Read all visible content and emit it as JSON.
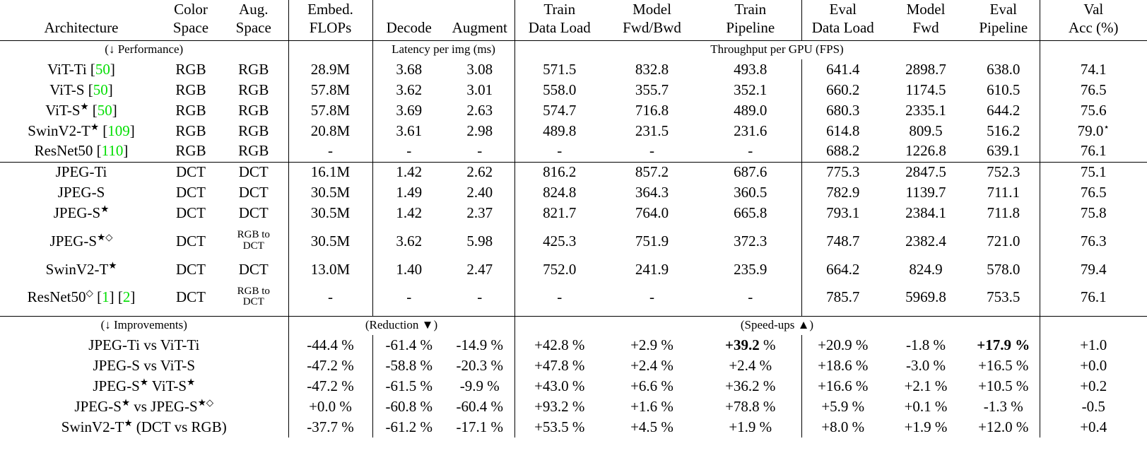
{
  "colors": {
    "background": "#FFFFFF",
    "text": "#000000",
    "citation_green": "#00DE00"
  },
  "table": {
    "columns": [
      {
        "line1": "",
        "line2": "Architecture"
      },
      {
        "line1": "Color",
        "line2": "Space"
      },
      {
        "line1": "Aug.",
        "line2": "Space"
      },
      {
        "line1": "Embed.",
        "line2": "FLOPs"
      },
      {
        "line1": "",
        "line2": "Decode"
      },
      {
        "line1": "",
        "line2": "Augment"
      },
      {
        "line1": "Train",
        "line2": "Data Load"
      },
      {
        "line1": "Model",
        "line2": "Fwd/Bwd"
      },
      {
        "line1": "Train",
        "line2": "Pipeline"
      },
      {
        "line1": "Eval",
        "line2": "Data Load"
      },
      {
        "line1": "Model",
        "line2": "Fwd"
      },
      {
        "line1": "Eval",
        "line2": "Pipeline"
      },
      {
        "line1": "Val",
        "line2": "Acc (%)"
      }
    ],
    "section_labels": {
      "performance": "(↓ Performance)",
      "latency": "Latency per img (ms)",
      "throughput": "Throughput per GPU (FPS)",
      "improvements": "(↓ Improvements)",
      "reduction": "(Reduction ▼)",
      "speedups": "(Speed-ups ▲)"
    },
    "performance_rows": [
      [
        "ViT-Ti [50]",
        "RGB",
        "RGB",
        "28.9M",
        "3.68",
        "3.08",
        "571.5",
        "832.8",
        "493.8",
        "641.4",
        "2898.7",
        "638.0",
        "74.1"
      ],
      [
        "ViT-S [50]",
        "RGB",
        "RGB",
        "57.8M",
        "3.62",
        "3.01",
        "558.0",
        "355.7",
        "352.1",
        "660.2",
        "1174.5",
        "610.5",
        "76.5"
      ],
      [
        "ViT-S★ [50]",
        "RGB",
        "RGB",
        "57.8M",
        "3.69",
        "2.63",
        "574.7",
        "716.8",
        "489.0",
        "680.3",
        "2335.1",
        "644.2",
        "75.6"
      ],
      [
        "SwinV2-T★ [109]",
        "RGB",
        "RGB",
        "20.8M",
        "3.61",
        "2.98",
        "489.8",
        "231.5",
        "231.6",
        "614.8",
        "809.5",
        "516.2",
        "79.0⋆"
      ],
      [
        "ResNet50 [110]",
        "RGB",
        "RGB",
        "-",
        "-",
        "-",
        "-",
        "-",
        "-",
        "688.2",
        "1226.8",
        "639.1",
        "76.1"
      ]
    ],
    "dct_rows": [
      [
        "JPEG-Ti",
        "DCT",
        "DCT",
        "16.1M",
        "1.42",
        "2.62",
        "816.2",
        "857.2",
        "687.6",
        "775.3",
        "2847.5",
        "752.3",
        "75.1"
      ],
      [
        "JPEG-S",
        "DCT",
        "DCT",
        "30.5M",
        "1.49",
        "2.40",
        "824.8",
        "364.3",
        "360.5",
        "782.9",
        "1139.7",
        "711.1",
        "76.5"
      ],
      [
        "JPEG-S★",
        "DCT",
        "DCT",
        "30.5M",
        "1.42",
        "2.37",
        "821.7",
        "764.0",
        "665.8",
        "793.1",
        "2384.1",
        "711.8",
        "75.8"
      ],
      [
        "JPEG-S★◇",
        "DCT",
        "RGB to|DCT",
        "30.5M",
        "3.62",
        "5.98",
        "425.3",
        "751.9",
        "372.3",
        "748.7",
        "2382.4",
        "721.0",
        "76.3"
      ],
      [
        "SwinV2-T★",
        "DCT",
        "DCT",
        "13.0M",
        "1.40",
        "2.47",
        "752.0",
        "241.9",
        "235.9",
        "664.2",
        "824.9",
        "578.0",
        "79.4"
      ],
      [
        "ResNet50◇ [1] [2]",
        "DCT",
        "RGB to|DCT",
        "-",
        "-",
        "-",
        "-",
        "-",
        "-",
        "785.7",
        "5969.8",
        "753.5",
        "76.1"
      ]
    ],
    "improvement_rows": [
      [
        "JPEG-Ti vs ViT-Ti",
        "-44.4 %",
        "-61.4 %",
        "-14.9 %",
        "+42.8 %",
        "+2.9 %",
        "**+39.2** %",
        "+20.9 %",
        "-1.8 %",
        "**+17.9 %**",
        "+1.0"
      ],
      [
        "JPEG-S vs ViT-S",
        "-47.2 %",
        "-58.8 %",
        "-20.3 %",
        "+47.8 %",
        "+2.4 %",
        "+2.4 %",
        "+18.6 %",
        "-3.0 %",
        "+16.5 %",
        "+0.0"
      ],
      [
        "JPEG-S★ ViT-S★",
        "-47.2 %",
        "-61.5 %",
        "-9.9 %",
        "+43.0 %",
        "+6.6 %",
        "+36.2 %",
        "+16.6 %",
        "+2.1 %",
        "+10.5 %",
        "+0.2"
      ],
      [
        "JPEG-S★ vs JPEG-S★◇",
        "+0.0 %",
        "-60.8 %",
        "-60.4 %",
        "+93.2 %",
        "+1.6 %",
        "+78.8 %",
        "+5.9 %",
        "+0.1 %",
        "-1.3 %",
        "-0.5"
      ],
      [
        "SwinV2-T★ (DCT vs RGB)",
        "-37.7 %",
        "-61.2 %",
        "-17.1 %",
        "+53.5 %",
        "+4.5 %",
        "+1.9 %",
        "+8.0 %",
        "+1.9 %",
        "+12.0 %",
        "+0.4"
      ]
    ]
  }
}
